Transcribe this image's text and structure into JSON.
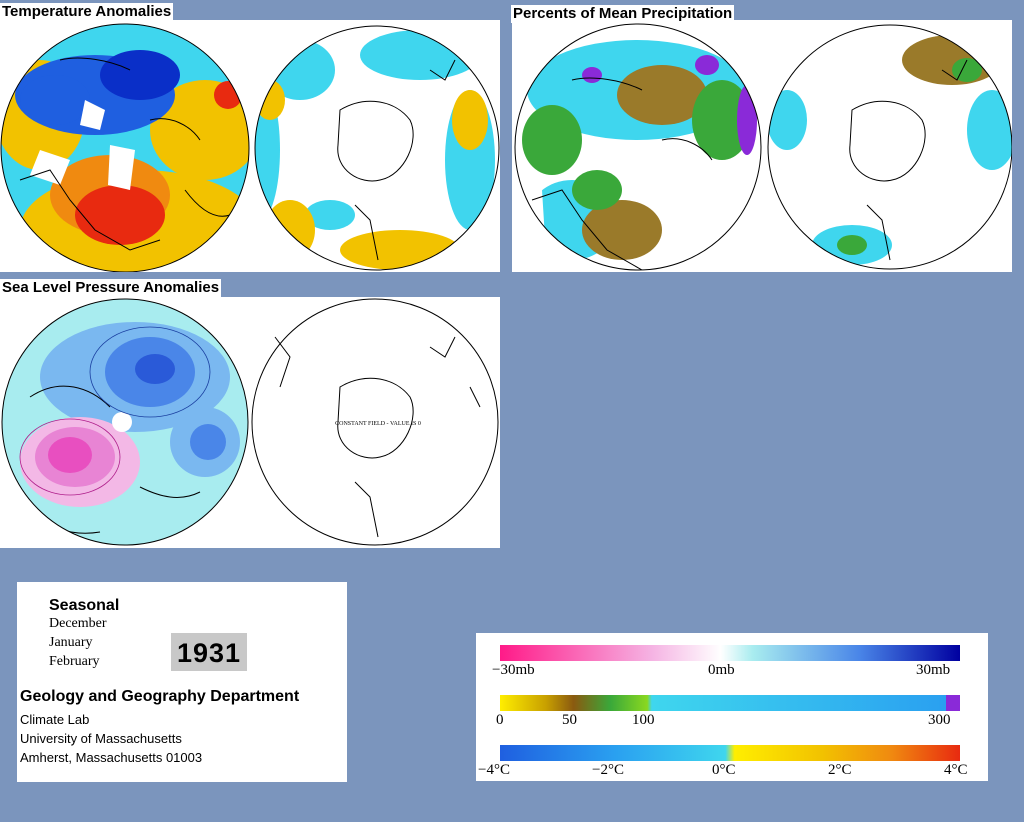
{
  "panels": {
    "temperature_title": "Temperature Anomalies",
    "precipitation_title": "Percents of Mean Precipitation",
    "pressure_title": "Sea Level Pressure Anomalies",
    "constant_field_note": "CONSTANT FIELD - VALUE IS 0"
  },
  "info": {
    "season_label": "Seasonal",
    "months": [
      "December",
      "January",
      "February"
    ],
    "year": "1931",
    "department": "Geology and Geography Department",
    "address": [
      "Climate Lab",
      "University of Massachusetts",
      "Amherst, Massachusetts 01003"
    ]
  },
  "legend": {
    "pressure": {
      "labels": [
        "−30mb",
        "0mb",
        "30mb"
      ]
    },
    "precipitation": {
      "labels": [
        "0",
        "50",
        "100",
        "300"
      ]
    },
    "temperature": {
      "labels": [
        "−4°C",
        "−2°C",
        "0°C",
        "2°C",
        "4°C"
      ]
    }
  },
  "colors": {
    "background": "#7b95bd",
    "cold": "#1f5fe0",
    "cyan": "#3fd6ee",
    "warm": "#f2c200",
    "hot": "#e82a10",
    "precip_brown": "#9a7a2a",
    "precip_green": "#3aa83a",
    "slp_magenta": "#e84fc0"
  }
}
